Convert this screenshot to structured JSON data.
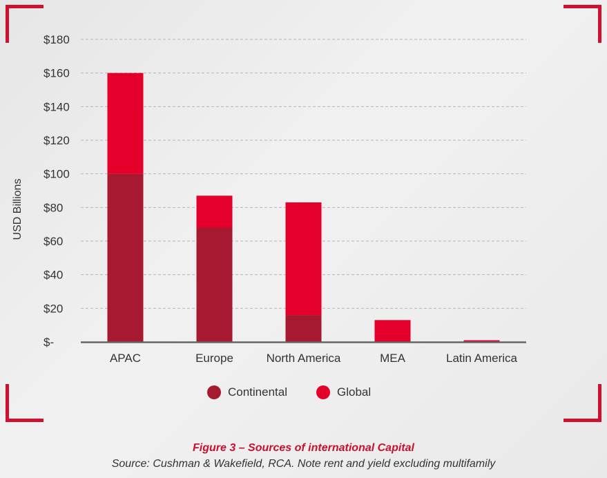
{
  "chart_data": {
    "type": "bar",
    "stacked": true,
    "categories": [
      "APAC",
      "Europe",
      "North America",
      "MEA",
      "Latin America"
    ],
    "series": [
      {
        "name": "Continental",
        "color": "#a6192e",
        "values": [
          100,
          68,
          16,
          0,
          0.5
        ]
      },
      {
        "name": "Global",
        "color": "#e4002b",
        "values": [
          60,
          19,
          67,
          13,
          0.5
        ]
      }
    ],
    "ylabel": "USD Billions",
    "ylim": [
      0,
      180
    ],
    "yticks": [
      0,
      20,
      40,
      60,
      80,
      100,
      120,
      140,
      160,
      180
    ],
    "ytick_labels": [
      "$-",
      "$20",
      "$40",
      "$60",
      "$80",
      "$100",
      "$120",
      "$140",
      "$160",
      "$180"
    ],
    "grid": true,
    "legend_position": "bottom"
  },
  "legend": {
    "continental_label": "Continental",
    "global_label": "Global"
  },
  "caption": {
    "title": "Figure 3 – Sources of international Capital",
    "source": "Source: Cushman & Wakefield, RCA. Note rent and yield excluding multifamily"
  },
  "colors": {
    "accent": "#d0102f",
    "continental": "#a6192e",
    "global": "#e4002b"
  }
}
